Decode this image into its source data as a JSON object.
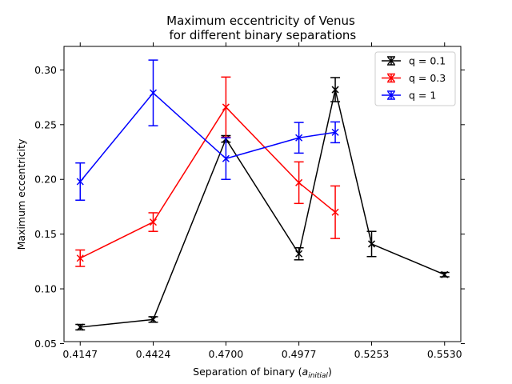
{
  "chart_data": {
    "type": "line",
    "title_line1": "Maximum eccentricity of Venus",
    "title_line2": " for different binary separations",
    "xlabel_prefix": "Separation of binary (",
    "xlabel_symbol": "a",
    "xlabel_subscript": "initial",
    "xlabel_suffix": ")",
    "ylabel": "Maximum eccentricity",
    "xlim": [
      0.40855,
      0.55915
    ],
    "ylim": [
      0.0518,
      0.3215
    ],
    "xticks": [
      0.4147,
      0.4424,
      0.47,
      0.4977,
      0.5253,
      0.553
    ],
    "xtick_labels": [
      "0.4147",
      "0.4424",
      "0.4700",
      "0.4977",
      "0.5253",
      "0.5530"
    ],
    "yticks": [
      0.05,
      0.1,
      0.15,
      0.2,
      0.25,
      0.3
    ],
    "ytick_labels": [
      "0.05",
      "0.10",
      "0.15",
      "0.20",
      "0.25",
      "0.30"
    ],
    "legend_position": "top-right",
    "marker": "x",
    "series": [
      {
        "name": "q = 0.1",
        "color": "#000000",
        "x": [
          0.4147,
          0.4424,
          0.47,
          0.4977,
          0.5115,
          0.5253,
          0.553
        ],
        "y": [
          0.065,
          0.072,
          0.237,
          0.132,
          0.282,
          0.141,
          0.113
        ],
        "err": [
          0.0025,
          0.0025,
          0.003,
          0.0055,
          0.011,
          0.0115,
          0.002
        ]
      },
      {
        "name": "q = 0.3",
        "color": "#ff0000",
        "x": [
          0.4147,
          0.4424,
          0.47,
          0.4977,
          0.5115
        ],
        "y": [
          0.128,
          0.161,
          0.266,
          0.197,
          0.17
        ],
        "err": [
          0.0075,
          0.0085,
          0.0275,
          0.019,
          0.024
        ]
      },
      {
        "name": "q = 1",
        "color": "#0000ff",
        "x": [
          0.4147,
          0.4424,
          0.47,
          0.4977,
          0.5115
        ],
        "y": [
          0.198,
          0.279,
          0.219,
          0.238,
          0.243
        ],
        "err": [
          0.017,
          0.03,
          0.019,
          0.014,
          0.0095
        ]
      }
    ]
  }
}
